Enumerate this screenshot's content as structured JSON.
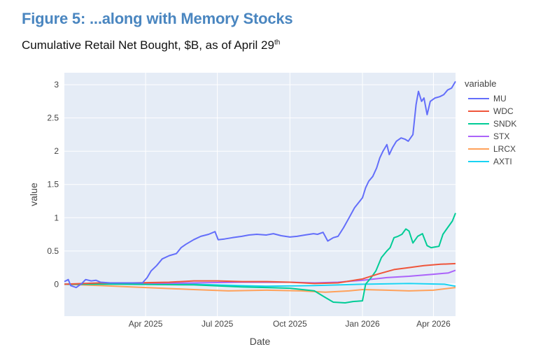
{
  "figure": {
    "title": "Figure 5: ...along with Memory Stocks",
    "subtitle": "Cumulative Retail Net Bought, $B, as of April 29",
    "subtitle_sup": "th"
  },
  "chart_data": {
    "type": "line",
    "xlabel": "Date",
    "ylabel": "value",
    "legend_title": "variable",
    "legend_position": "right",
    "grid": true,
    "background_color": "#e5ecf6",
    "xlim": [
      "2024-12-19",
      "2026-04-29"
    ],
    "ylim": [
      -0.48,
      3.18
    ],
    "x_ticks": [
      {
        "date": "2025-04-01",
        "label": "Apr 2025"
      },
      {
        "date": "2025-07-01",
        "label": "Jul 2025"
      },
      {
        "date": "2025-10-01",
        "label": "Oct 2025"
      },
      {
        "date": "2026-01-01",
        "label": "Jan 2026"
      },
      {
        "date": "2026-04-01",
        "label": "Apr 2026"
      }
    ],
    "y_ticks": [
      {
        "value": 0,
        "label": "0"
      },
      {
        "value": 0.5,
        "label": "0.5"
      },
      {
        "value": 1,
        "label": "1"
      },
      {
        "value": 1.5,
        "label": "1.5"
      },
      {
        "value": 2,
        "label": "2"
      },
      {
        "value": 2.5,
        "label": "2.5"
      },
      {
        "value": 3,
        "label": "3"
      }
    ],
    "series": [
      {
        "name": "MU",
        "color": "#636efa",
        "points": [
          [
            "2024-12-19",
            0.04
          ],
          [
            "2024-12-24",
            0.07
          ],
          [
            "2024-12-27",
            -0.02
          ],
          [
            "2025-01-03",
            -0.05
          ],
          [
            "2025-01-10",
            0.01
          ],
          [
            "2025-01-15",
            0.07
          ],
          [
            "2025-01-22",
            0.05
          ],
          [
            "2025-01-28",
            0.06
          ],
          [
            "2025-02-03",
            0.03
          ],
          [
            "2025-02-15",
            0.02
          ],
          [
            "2025-03-01",
            0.02
          ],
          [
            "2025-03-15",
            0.02
          ],
          [
            "2025-03-28",
            0.02
          ],
          [
            "2025-04-03",
            0.1
          ],
          [
            "2025-04-08",
            0.2
          ],
          [
            "2025-04-15",
            0.28
          ],
          [
            "2025-04-22",
            0.38
          ],
          [
            "2025-05-01",
            0.43
          ],
          [
            "2025-05-10",
            0.46
          ],
          [
            "2025-05-16",
            0.55
          ],
          [
            "2025-05-22",
            0.6
          ],
          [
            "2025-06-01",
            0.67
          ],
          [
            "2025-06-10",
            0.72
          ],
          [
            "2025-06-20",
            0.75
          ],
          [
            "2025-06-28",
            0.79
          ],
          [
            "2025-07-02",
            0.67
          ],
          [
            "2025-07-10",
            0.68
          ],
          [
            "2025-07-20",
            0.7
          ],
          [
            "2025-08-01",
            0.72
          ],
          [
            "2025-08-10",
            0.74
          ],
          [
            "2025-08-20",
            0.75
          ],
          [
            "2025-09-01",
            0.74
          ],
          [
            "2025-09-10",
            0.76
          ],
          [
            "2025-09-20",
            0.73
          ],
          [
            "2025-10-01",
            0.71
          ],
          [
            "2025-10-10",
            0.72
          ],
          [
            "2025-10-20",
            0.74
          ],
          [
            "2025-10-31",
            0.76
          ],
          [
            "2025-11-05",
            0.75
          ],
          [
            "2025-11-12",
            0.78
          ],
          [
            "2025-11-18",
            0.65
          ],
          [
            "2025-11-25",
            0.7
          ],
          [
            "2025-12-01",
            0.72
          ],
          [
            "2025-12-08",
            0.85
          ],
          [
            "2025-12-15",
            1.0
          ],
          [
            "2025-12-22",
            1.15
          ],
          [
            "2026-01-01",
            1.3
          ],
          [
            "2026-01-05",
            1.45
          ],
          [
            "2026-01-09",
            1.55
          ],
          [
            "2026-01-14",
            1.62
          ],
          [
            "2026-01-19",
            1.75
          ],
          [
            "2026-01-23",
            1.9
          ],
          [
            "2026-01-27",
            2.0
          ],
          [
            "2026-02-01",
            2.1
          ],
          [
            "2026-02-04",
            1.95
          ],
          [
            "2026-02-08",
            2.05
          ],
          [
            "2026-02-13",
            2.15
          ],
          [
            "2026-02-19",
            2.2
          ],
          [
            "2026-02-24",
            2.18
          ],
          [
            "2026-02-28",
            2.15
          ],
          [
            "2026-03-06",
            2.25
          ],
          [
            "2026-03-10",
            2.7
          ],
          [
            "2026-03-13",
            2.9
          ],
          [
            "2026-03-17",
            2.75
          ],
          [
            "2026-03-20",
            2.8
          ],
          [
            "2026-03-24",
            2.55
          ],
          [
            "2026-03-28",
            2.75
          ],
          [
            "2026-04-03",
            2.8
          ],
          [
            "2026-04-09",
            2.82
          ],
          [
            "2026-04-14",
            2.85
          ],
          [
            "2026-04-19",
            2.92
          ],
          [
            "2026-04-24",
            2.95
          ],
          [
            "2026-04-29",
            3.05
          ]
        ]
      },
      {
        "name": "WDC",
        "color": "#ef553b",
        "points": [
          [
            "2024-12-19",
            0.0
          ],
          [
            "2025-02-01",
            0.02
          ],
          [
            "2025-03-15",
            0.02
          ],
          [
            "2025-05-01",
            0.03
          ],
          [
            "2025-06-01",
            0.05
          ],
          [
            "2025-07-01",
            0.05
          ],
          [
            "2025-08-01",
            0.04
          ],
          [
            "2025-09-01",
            0.04
          ],
          [
            "2025-10-01",
            0.03
          ],
          [
            "2025-11-01",
            0.01
          ],
          [
            "2025-12-01",
            0.02
          ],
          [
            "2026-01-01",
            0.08
          ],
          [
            "2026-01-20",
            0.15
          ],
          [
            "2026-02-10",
            0.22
          ],
          [
            "2026-03-01",
            0.25
          ],
          [
            "2026-03-20",
            0.28
          ],
          [
            "2026-04-10",
            0.3
          ],
          [
            "2026-04-29",
            0.31
          ]
        ]
      },
      {
        "name": "SNDK",
        "color": "#00cc96",
        "points": [
          [
            "2024-12-19",
            0.0
          ],
          [
            "2025-03-01",
            0.0
          ],
          [
            "2025-06-01",
            -0.01
          ],
          [
            "2025-08-01",
            -0.04
          ],
          [
            "2025-09-01",
            -0.05
          ],
          [
            "2025-10-01",
            -0.06
          ],
          [
            "2025-11-01",
            -0.1
          ],
          [
            "2025-11-15",
            -0.2
          ],
          [
            "2025-11-25",
            -0.27
          ],
          [
            "2025-12-10",
            -0.28
          ],
          [
            "2025-12-20",
            -0.26
          ],
          [
            "2026-01-01",
            -0.25
          ],
          [
            "2026-01-05",
            0.0
          ],
          [
            "2026-01-12",
            0.1
          ],
          [
            "2026-01-18",
            0.2
          ],
          [
            "2026-01-25",
            0.4
          ],
          [
            "2026-02-01",
            0.5
          ],
          [
            "2026-02-05",
            0.55
          ],
          [
            "2026-02-10",
            0.7
          ],
          [
            "2026-02-15",
            0.72
          ],
          [
            "2026-02-20",
            0.75
          ],
          [
            "2026-02-25",
            0.83
          ],
          [
            "2026-03-01",
            0.8
          ],
          [
            "2026-03-06",
            0.62
          ],
          [
            "2026-03-12",
            0.72
          ],
          [
            "2026-03-18",
            0.76
          ],
          [
            "2026-03-24",
            0.58
          ],
          [
            "2026-03-29",
            0.55
          ],
          [
            "2026-04-03",
            0.56
          ],
          [
            "2026-04-08",
            0.57
          ],
          [
            "2026-04-13",
            0.75
          ],
          [
            "2026-04-19",
            0.85
          ],
          [
            "2026-04-25",
            0.95
          ],
          [
            "2026-04-29",
            1.07
          ]
        ]
      },
      {
        "name": "STX",
        "color": "#ab63fa",
        "points": [
          [
            "2024-12-19",
            0.0
          ],
          [
            "2025-03-01",
            0.01
          ],
          [
            "2025-06-01",
            0.02
          ],
          [
            "2025-08-01",
            0.03
          ],
          [
            "2025-10-01",
            0.03
          ],
          [
            "2025-11-01",
            0.02
          ],
          [
            "2025-12-01",
            0.03
          ],
          [
            "2026-01-01",
            0.06
          ],
          [
            "2026-02-01",
            0.1
          ],
          [
            "2026-03-01",
            0.12
          ],
          [
            "2026-04-01",
            0.15
          ],
          [
            "2026-04-20",
            0.17
          ],
          [
            "2026-04-29",
            0.21
          ]
        ]
      },
      {
        "name": "LRCX",
        "color": "#ffa15a",
        "points": [
          [
            "2024-12-19",
            0.0
          ],
          [
            "2025-02-01",
            -0.02
          ],
          [
            "2025-04-01",
            -0.05
          ],
          [
            "2025-06-01",
            -0.08
          ],
          [
            "2025-07-15",
            -0.1
          ],
          [
            "2025-09-01",
            -0.09
          ],
          [
            "2025-10-15",
            -0.1
          ],
          [
            "2025-11-15",
            -0.12
          ],
          [
            "2025-12-15",
            -0.1
          ],
          [
            "2026-01-01",
            -0.08
          ],
          [
            "2026-02-01",
            -0.09
          ],
          [
            "2026-03-01",
            -0.1
          ],
          [
            "2026-04-01",
            -0.09
          ],
          [
            "2026-04-29",
            -0.05
          ]
        ]
      },
      {
        "name": "AXTI",
        "color": "#19d3f3",
        "points": [
          [
            "2024-12-19",
            0.0
          ],
          [
            "2025-03-01",
            0.01
          ],
          [
            "2025-06-01",
            0.0
          ],
          [
            "2025-09-01",
            -0.03
          ],
          [
            "2025-11-01",
            -0.02
          ],
          [
            "2026-01-01",
            0.0
          ],
          [
            "2026-03-01",
            0.01
          ],
          [
            "2026-04-15",
            0.0
          ],
          [
            "2026-04-29",
            -0.03
          ]
        ]
      }
    ]
  }
}
